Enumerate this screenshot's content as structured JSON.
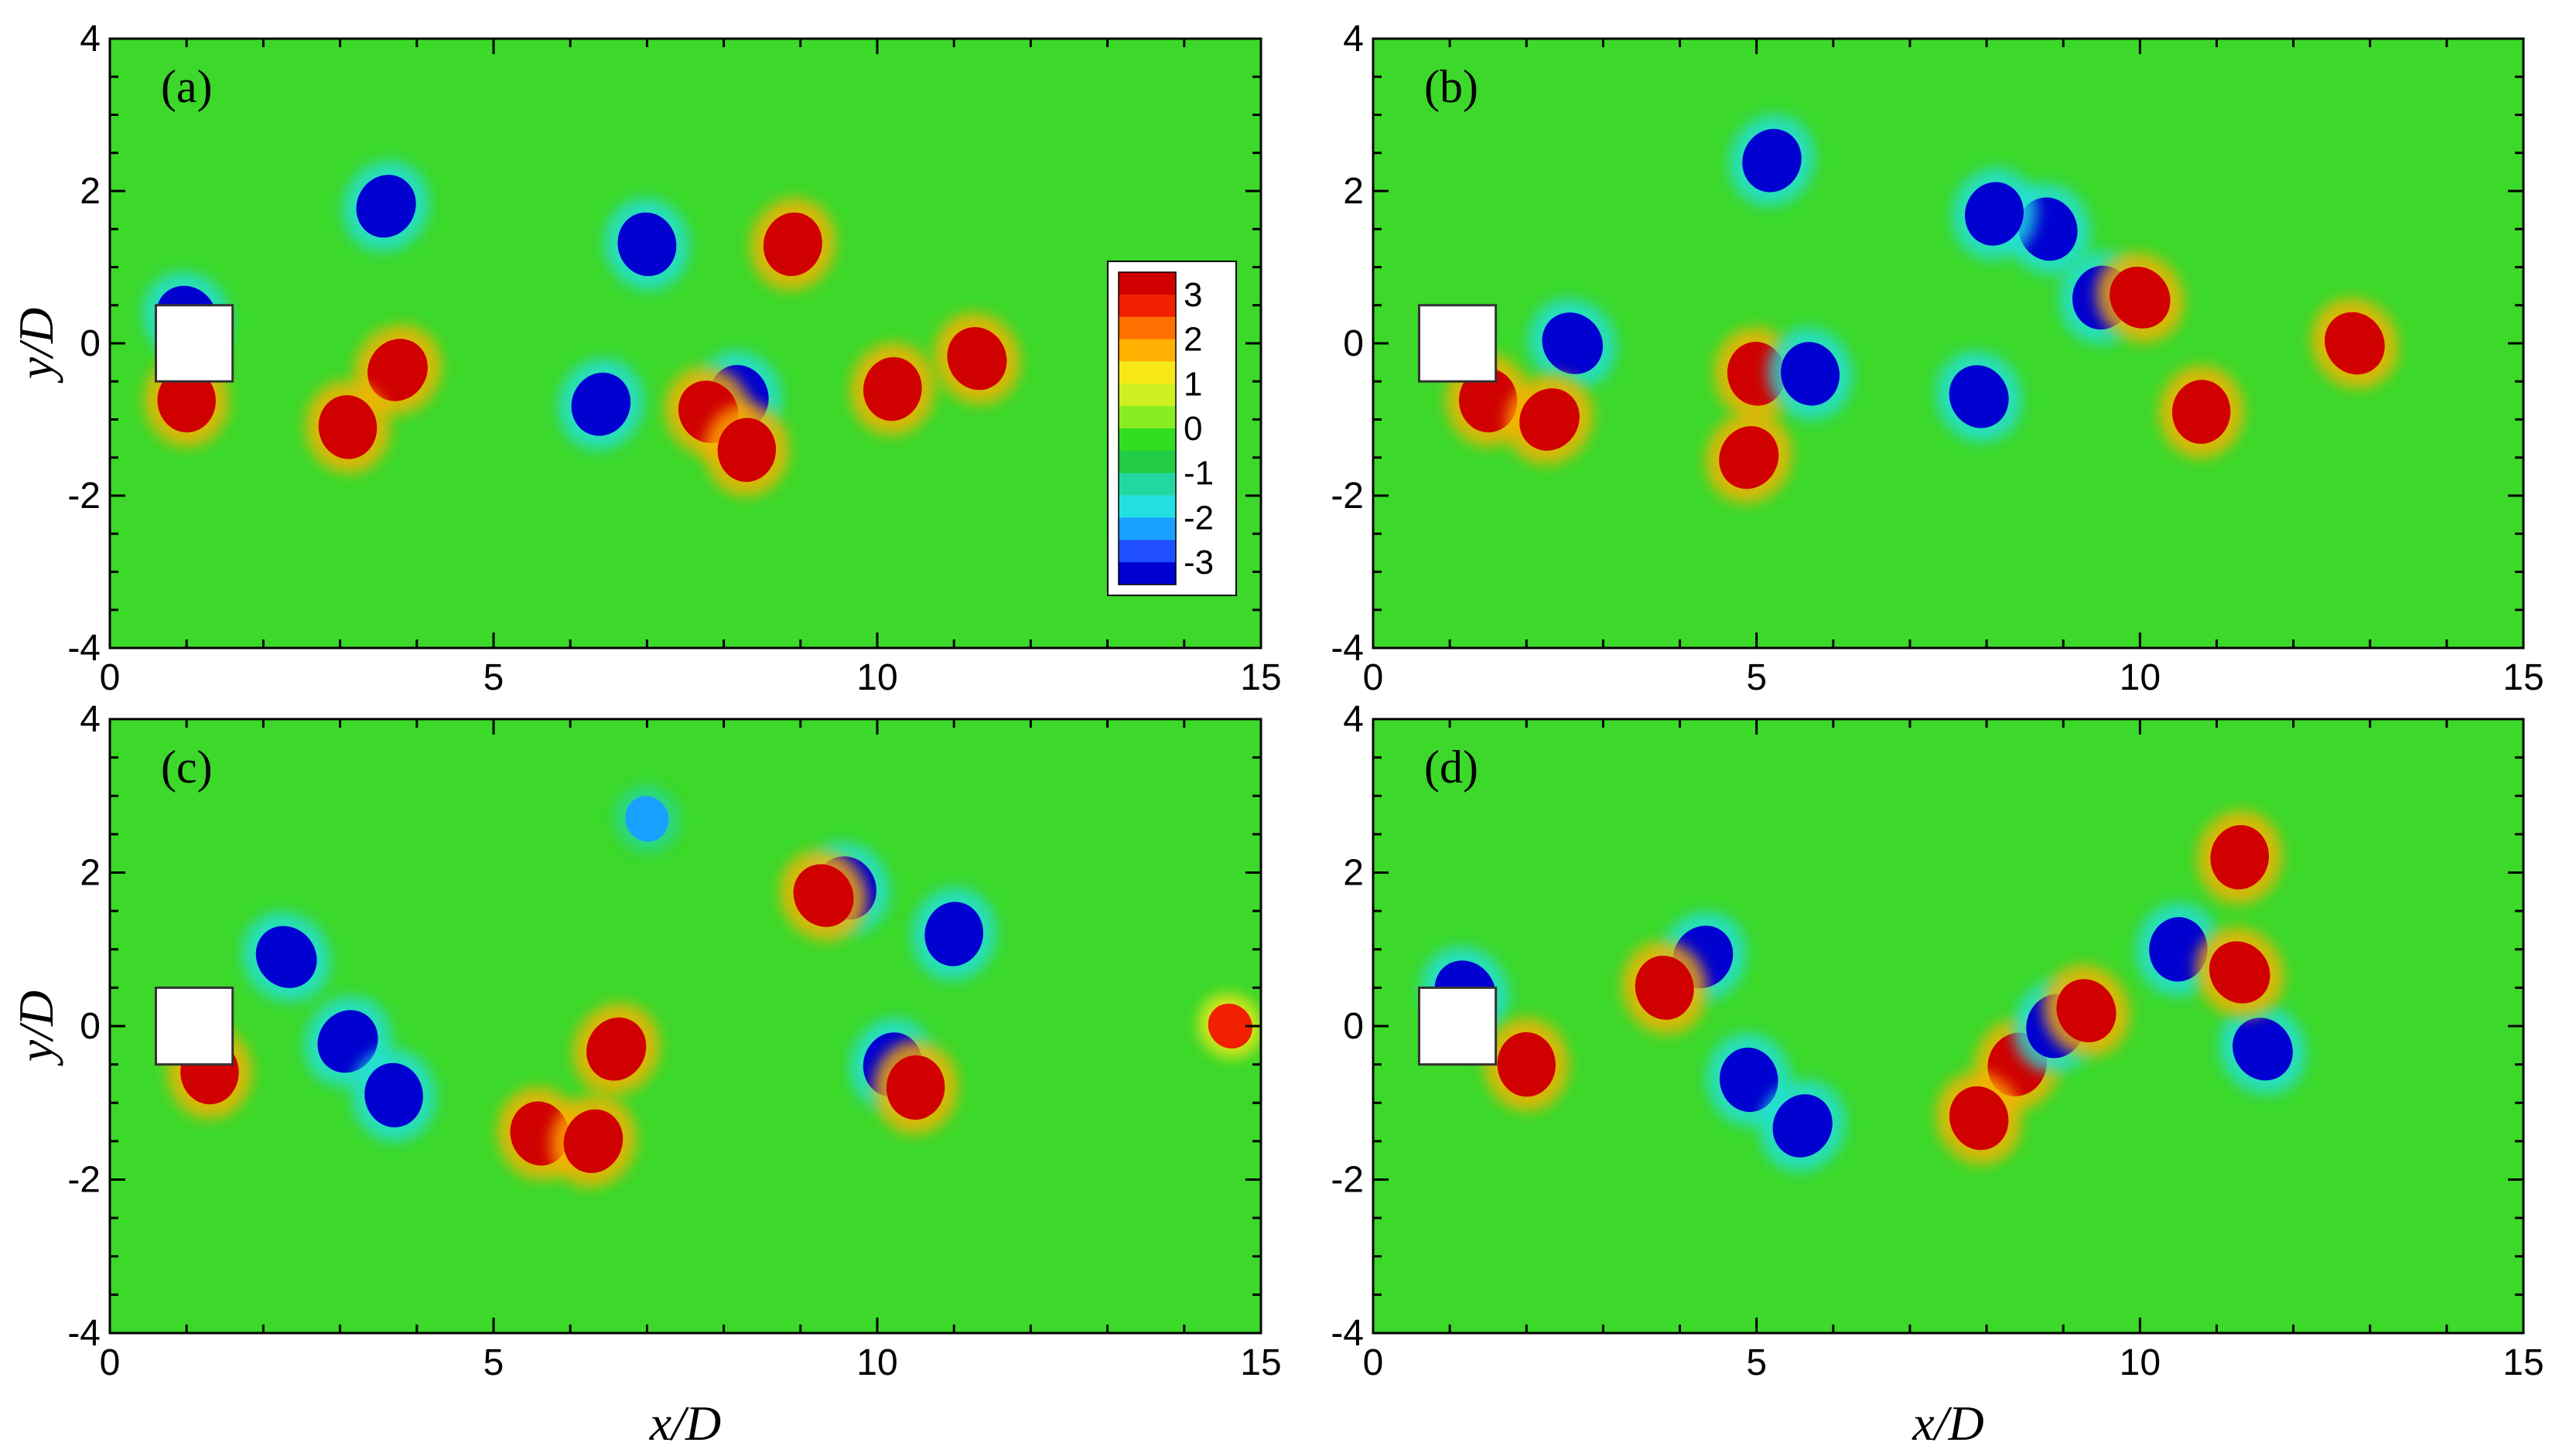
{
  "chart_data": [
    {
      "type": "heatmap",
      "panel": "(a)",
      "xlabel": "",
      "ylabel": "y/D",
      "xlim": [
        0,
        15
      ],
      "ylim": [
        -4,
        4
      ],
      "x_ticks": [
        "0",
        "5",
        "10",
        "15"
      ],
      "y_ticks": [
        "4",
        "2",
        "0",
        "-2",
        "-4"
      ],
      "obstacle": {
        "x": [
          0.6,
          1.6
        ],
        "y": [
          -0.5,
          0.5
        ]
      },
      "features": [
        {
          "x": 1.0,
          "y": 0.35,
          "value": -3
        },
        {
          "x": 1.0,
          "y": -0.75,
          "value": 3
        },
        {
          "x": 3.75,
          "y": -0.35,
          "value": 3
        },
        {
          "x": 3.1,
          "y": -1.1,
          "value": 3
        },
        {
          "x": 3.6,
          "y": 1.8,
          "value": -3
        },
        {
          "x": 7.0,
          "y": 1.3,
          "value": -3
        },
        {
          "x": 6.4,
          "y": -0.8,
          "value": -3
        },
        {
          "x": 8.2,
          "y": -0.7,
          "value": -3
        },
        {
          "x": 8.9,
          "y": 1.3,
          "value": 3
        },
        {
          "x": 11.3,
          "y": -0.2,
          "value": 3
        },
        {
          "x": 10.2,
          "y": -0.6,
          "value": 3
        },
        {
          "x": 7.8,
          "y": -0.9,
          "value": 3
        },
        {
          "x": 8.3,
          "y": -1.4,
          "value": 3
        }
      ]
    },
    {
      "type": "heatmap",
      "panel": "(b)",
      "xlabel": "",
      "ylabel": "",
      "xlim": [
        0,
        15
      ],
      "ylim": [
        -4,
        4
      ],
      "x_ticks": [
        "0",
        "5",
        "10",
        "15"
      ],
      "y_ticks": [
        "4",
        "2",
        "0",
        "-2",
        "-4"
      ],
      "obstacle": {
        "x": [
          0.6,
          1.6
        ],
        "y": [
          -0.5,
          0.5
        ]
      },
      "features": [
        {
          "x": 2.6,
          "y": 0.0,
          "value": -3
        },
        {
          "x": 1.5,
          "y": -0.75,
          "value": 3
        },
        {
          "x": 2.3,
          "y": -1.0,
          "value": 3
        },
        {
          "x": 5.0,
          "y": -0.4,
          "value": 3
        },
        {
          "x": 4.9,
          "y": -1.5,
          "value": 3
        },
        {
          "x": 5.7,
          "y": -0.4,
          "value": -3
        },
        {
          "x": 5.2,
          "y": 2.4,
          "value": -3
        },
        {
          "x": 8.8,
          "y": 1.5,
          "value": -3
        },
        {
          "x": 8.1,
          "y": 1.7,
          "value": -3
        },
        {
          "x": 7.9,
          "y": -0.7,
          "value": -3
        },
        {
          "x": 9.5,
          "y": 0.6,
          "value": -3
        },
        {
          "x": 12.8,
          "y": 0.0,
          "value": 3
        },
        {
          "x": 10.8,
          "y": -0.9,
          "value": 3
        },
        {
          "x": 10.0,
          "y": 0.6,
          "value": 3
        }
      ]
    },
    {
      "type": "heatmap",
      "panel": "(c)",
      "xlabel": "x/D",
      "ylabel": "y/D",
      "xlim": [
        0,
        15
      ],
      "ylim": [
        -4,
        4
      ],
      "x_ticks": [
        "0",
        "5",
        "10",
        "15"
      ],
      "y_ticks": [
        "4",
        "2",
        "0",
        "-2",
        "-4"
      ],
      "obstacle": {
        "x": [
          0.6,
          1.6
        ],
        "y": [
          -0.5,
          0.5
        ]
      },
      "features": [
        {
          "x": 2.3,
          "y": 0.9,
          "value": -3
        },
        {
          "x": 1.3,
          "y": -0.6,
          "value": 3
        },
        {
          "x": 3.1,
          "y": -0.2,
          "value": -3
        },
        {
          "x": 3.7,
          "y": -0.9,
          "value": -3
        },
        {
          "x": 6.6,
          "y": -0.3,
          "value": 3
        },
        {
          "x": 5.6,
          "y": -1.4,
          "value": 3
        },
        {
          "x": 6.3,
          "y": -1.5,
          "value": 3
        },
        {
          "x": 7.0,
          "y": 2.7,
          "value": -2
        },
        {
          "x": 10.2,
          "y": -0.5,
          "value": -3
        },
        {
          "x": 9.6,
          "y": 1.8,
          "value": -3
        },
        {
          "x": 11.0,
          "y": 1.2,
          "value": -3
        },
        {
          "x": 9.3,
          "y": 1.7,
          "value": 3
        },
        {
          "x": 10.5,
          "y": -0.8,
          "value": 3
        },
        {
          "x": 14.6,
          "y": 0.0,
          "value": 2.5
        }
      ]
    },
    {
      "type": "heatmap",
      "panel": "(d)",
      "xlabel": "x/D",
      "ylabel": "",
      "xlim": [
        0,
        15
      ],
      "ylim": [
        -4,
        4
      ],
      "x_ticks": [
        "0",
        "5",
        "10",
        "15"
      ],
      "y_ticks": [
        "4",
        "2",
        "0",
        "-2",
        "-4"
      ],
      "obstacle": {
        "x": [
          0.6,
          1.6
        ],
        "y": [
          -0.5,
          0.5
        ]
      },
      "features": [
        {
          "x": 1.2,
          "y": 0.45,
          "value": -3
        },
        {
          "x": 2.0,
          "y": -0.5,
          "value": 3
        },
        {
          "x": 4.3,
          "y": 0.9,
          "value": -3
        },
        {
          "x": 4.9,
          "y": -0.7,
          "value": -3
        },
        {
          "x": 5.6,
          "y": -1.3,
          "value": -3
        },
        {
          "x": 3.8,
          "y": 0.5,
          "value": 3
        },
        {
          "x": 8.4,
          "y": -0.5,
          "value": 3
        },
        {
          "x": 7.9,
          "y": -1.2,
          "value": 3
        },
        {
          "x": 8.9,
          "y": 0.0,
          "value": -3
        },
        {
          "x": 9.3,
          "y": 0.2,
          "value": 3
        },
        {
          "x": 11.3,
          "y": 2.2,
          "value": 3
        },
        {
          "x": 11.6,
          "y": -0.3,
          "value": -3
        },
        {
          "x": 10.5,
          "y": 1.0,
          "value": -3
        },
        {
          "x": 11.3,
          "y": 0.7,
          "value": 3
        }
      ]
    }
  ],
  "colorbar": {
    "labels": [
      "3",
      "2",
      "1",
      "0",
      "-1",
      "-2",
      "-3"
    ],
    "range": [
      -3,
      3
    ],
    "colors": [
      "#0000d0",
      "#1f4fff",
      "#1aa0ff",
      "#22e0e0",
      "#22d8a0",
      "#22cc44",
      "#33dd22",
      "#88ee22",
      "#ccf020",
      "#f8e818",
      "#ffb000",
      "#ff7000",
      "#f02000",
      "#d00000"
    ]
  },
  "background_color": "#3cd82a"
}
